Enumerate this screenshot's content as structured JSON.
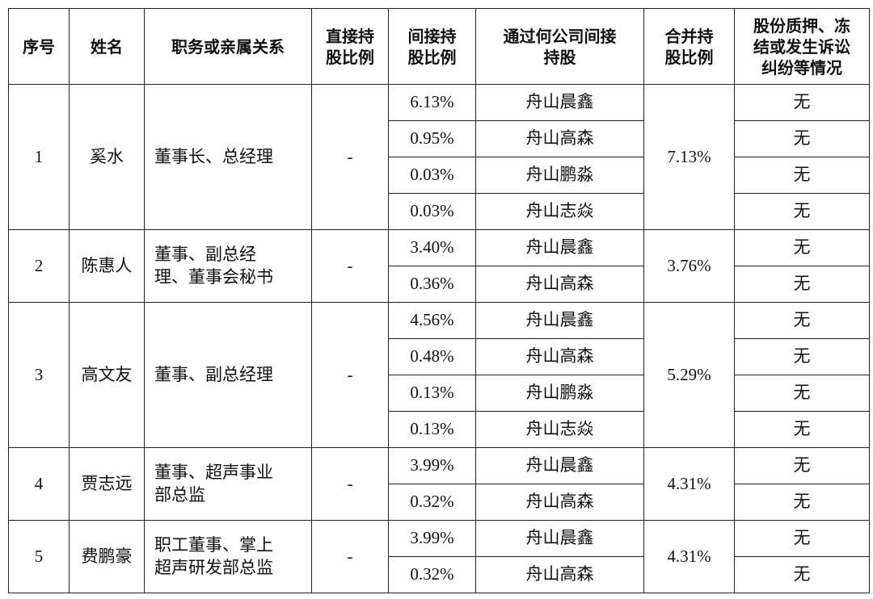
{
  "table": {
    "header": [
      [
        "序号"
      ],
      [
        "姓名"
      ],
      [
        "职务或亲属关系"
      ],
      [
        "直接持",
        "股比例"
      ],
      [
        "间接持",
        "股比例"
      ],
      [
        "通过何公司间接",
        "持股"
      ],
      [
        "合并持",
        "股比例"
      ],
      [
        "股份质押、冻",
        "结或发生诉讼",
        "纠纷等情况"
      ]
    ],
    "rows": [
      {
        "index": "1",
        "name": "奚水",
        "title": [
          "董事长、总经理"
        ],
        "direct": "-",
        "total": "7.13%",
        "holdings": [
          {
            "pct": "6.13%",
            "company": "舟山晨鑫",
            "pledge": "无"
          },
          {
            "pct": "0.95%",
            "company": "舟山高森",
            "pledge": "无"
          },
          {
            "pct": "0.03%",
            "company": "舟山鹏淼",
            "pledge": "无"
          },
          {
            "pct": "0.03%",
            "company": "舟山志焱",
            "pledge": "无"
          }
        ]
      },
      {
        "index": "2",
        "name": "陈惠人",
        "title": [
          "董事、副总经",
          "理、董事会秘书"
        ],
        "direct": "-",
        "total": "3.76%",
        "holdings": [
          {
            "pct": "3.40%",
            "company": "舟山晨鑫",
            "pledge": "无"
          },
          {
            "pct": "0.36%",
            "company": "舟山高森",
            "pledge": "无"
          }
        ]
      },
      {
        "index": "3",
        "name": "高文友",
        "title": [
          "董事、副总经理"
        ],
        "direct": "-",
        "total": "5.29%",
        "holdings": [
          {
            "pct": "4.56%",
            "company": "舟山晨鑫",
            "pledge": "无"
          },
          {
            "pct": "0.48%",
            "company": "舟山高森",
            "pledge": "无"
          },
          {
            "pct": "0.13%",
            "company": "舟山鹏淼",
            "pledge": "无"
          },
          {
            "pct": "0.13%",
            "company": "舟山志焱",
            "pledge": "无"
          }
        ]
      },
      {
        "index": "4",
        "name": "贾志远",
        "title": [
          "董事、超声事业",
          "部总监"
        ],
        "direct": "-",
        "total": "4.31%",
        "holdings": [
          {
            "pct": "3.99%",
            "company": "舟山晨鑫",
            "pledge": "无"
          },
          {
            "pct": "0.32%",
            "company": "舟山高森",
            "pledge": "无"
          }
        ]
      },
      {
        "index": "5",
        "name": "费鹏豪",
        "title": [
          "职工董事、掌上",
          "超声研发部总监"
        ],
        "direct": "-",
        "total": "4.31%",
        "holdings": [
          {
            "pct": "3.99%",
            "company": "舟山晨鑫",
            "pledge": "无"
          },
          {
            "pct": "0.32%",
            "company": "舟山高森",
            "pledge": "无"
          }
        ]
      }
    ]
  }
}
